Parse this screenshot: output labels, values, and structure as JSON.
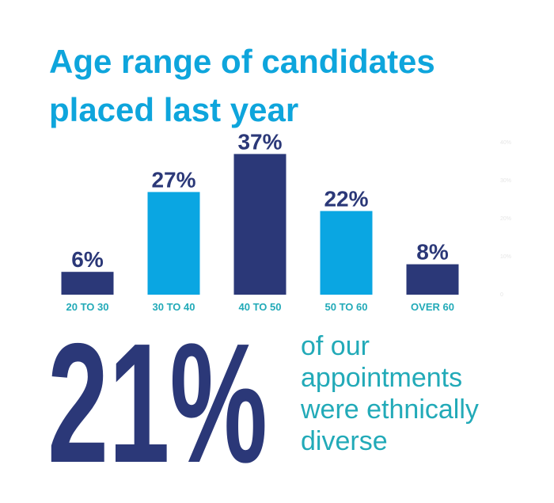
{
  "chart_data": {
    "type": "bar",
    "title": [
      "Age range of candidates",
      "placed last year"
    ],
    "categories": [
      "20 TO 30",
      "30 TO 40",
      "40 TO 50",
      "50 TO 60",
      "OVER 60"
    ],
    "values": [
      6,
      27,
      37,
      22,
      8
    ],
    "value_labels": [
      "6%",
      "27%",
      "37%",
      "22%",
      "8%"
    ],
    "colors": [
      "#2b3878",
      "#0aa6e2",
      "#2b3878",
      "#0aa6e2",
      "#2b3878"
    ],
    "ylim": [
      0,
      40
    ],
    "yticks": [
      0,
      {
        "value": 10,
        "label": "10%"
      },
      {
        "value": 20,
        "label": "20%"
      },
      {
        "value": 30,
        "label": "30%"
      },
      {
        "value": 40,
        "label": "40%"
      }
    ],
    "annotation": {
      "figure": "21%",
      "text": [
        "of our",
        "appointments",
        "were ethnically",
        "diverse"
      ]
    }
  }
}
